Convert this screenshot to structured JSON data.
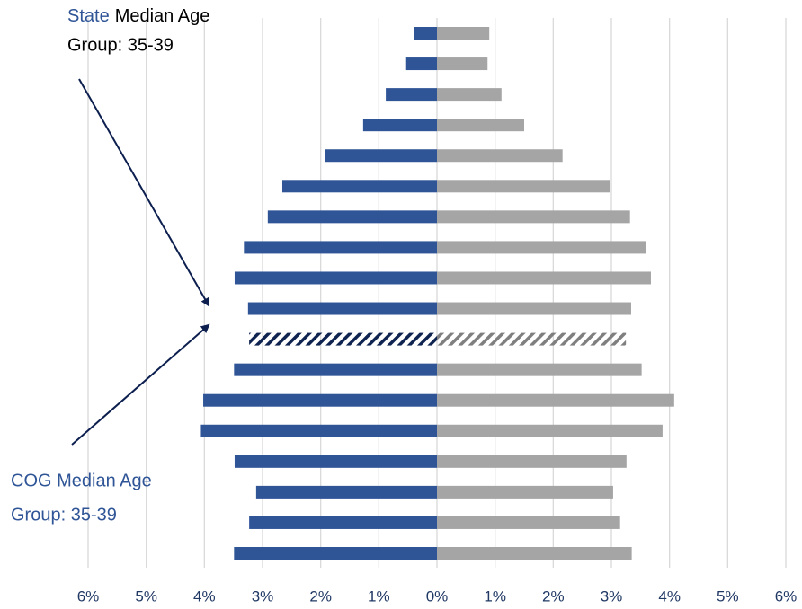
{
  "chart_data": {
    "type": "pyramid",
    "xlim": [
      -6,
      6
    ],
    "xticks": [
      {
        "value": -6,
        "label": "6%"
      },
      {
        "value": -5,
        "label": "5%"
      },
      {
        "value": -4,
        "label": "4%"
      },
      {
        "value": -3,
        "label": "3%"
      },
      {
        "value": -2,
        "label": "2%"
      },
      {
        "value": -1,
        "label": "1%"
      },
      {
        "value": 0,
        "label": "0%"
      },
      {
        "value": 1,
        "label": "1%"
      },
      {
        "value": 2,
        "label": "2%"
      },
      {
        "value": 3,
        "label": "3%"
      },
      {
        "value": 4,
        "label": "4%"
      },
      {
        "value": 5,
        "label": "5%"
      },
      {
        "value": 6,
        "label": "6%"
      }
    ],
    "grid": true,
    "hatched_row": 10,
    "series": [
      {
        "color": "#2f5597",
        "values": [
          -0.4,
          -0.53,
          -0.88,
          -1.27,
          -1.92,
          -2.66,
          -2.91,
          -3.32,
          -3.48,
          -3.25,
          -3.23,
          -3.49,
          -4.02,
          -4.06,
          -3.48,
          -3.11,
          -3.23,
          -3.49
        ]
      },
      {
        "color": "#a5a5a5",
        "values": [
          0.9,
          0.87,
          1.11,
          1.5,
          2.16,
          2.97,
          3.32,
          3.59,
          3.68,
          3.34,
          3.25,
          3.52,
          4.08,
          3.88,
          3.26,
          3.03,
          3.15,
          3.35
        ]
      }
    ],
    "annotations": [
      {
        "highlight": "State",
        "text": "Median Age",
        "line2": "Group: 35-39"
      },
      {
        "text": "COG Median Age",
        "line2": "Group: 35-39"
      }
    ]
  }
}
